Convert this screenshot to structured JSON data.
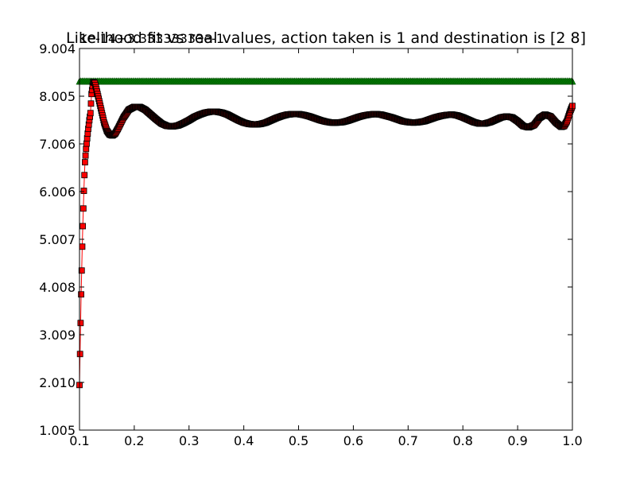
{
  "chart_data": {
    "type": "line",
    "title": "Likelihood fit vs real values, action taken is 1 and destination is [2 8]",
    "offset_label": "1e-14+3.33333333e-1",
    "xlabel": "",
    "ylabel": "",
    "xlim": [
      0.1,
      1.0
    ],
    "ylim": [
      1.005,
      9.004
    ],
    "x_ticks": [
      "0.1",
      "0.2",
      "0.3",
      "0.4",
      "0.5",
      "0.6",
      "0.7",
      "0.8",
      "0.9",
      "1.0"
    ],
    "y_ticks": [
      "1.005",
      "2.010",
      "3.009",
      "4.008",
      "5.007",
      "6.006",
      "7.006",
      "8.005",
      "9.004"
    ],
    "series": [
      {
        "color": "#ff0000",
        "marker": "square",
        "x": [
          0.1,
          0.101,
          0.102,
          0.103,
          0.104,
          0.105,
          0.106,
          0.107,
          0.108,
          0.109,
          0.11,
          0.112,
          0.114,
          0.116,
          0.118,
          0.12,
          0.122,
          0.125,
          0.128,
          0.131,
          0.135,
          0.14,
          0.145,
          0.15,
          0.155,
          0.16,
          0.165,
          0.17,
          0.18,
          0.19,
          0.2,
          0.21,
          0.22,
          0.23,
          0.24,
          0.25,
          0.26,
          0.27,
          0.28,
          0.29,
          0.3,
          0.31,
          0.32,
          0.33,
          0.34,
          0.35,
          0.36,
          0.37,
          0.38,
          0.39,
          0.4,
          0.41,
          0.42,
          0.43,
          0.44,
          0.45,
          0.46,
          0.47,
          0.48,
          0.49,
          0.5,
          0.51,
          0.52,
          0.53,
          0.54,
          0.55,
          0.56,
          0.57,
          0.58,
          0.59,
          0.6,
          0.61,
          0.62,
          0.63,
          0.64,
          0.65,
          0.66,
          0.67,
          0.68,
          0.69,
          0.7,
          0.71,
          0.72,
          0.73,
          0.74,
          0.75,
          0.76,
          0.77,
          0.78,
          0.79,
          0.8,
          0.81,
          0.82,
          0.83,
          0.84,
          0.85,
          0.86,
          0.87,
          0.88,
          0.89,
          0.9,
          0.91,
          0.92,
          0.93,
          0.94,
          0.95,
          0.96,
          0.97,
          0.98,
          0.985,
          0.99,
          0.994,
          0.997,
          1.0
        ],
        "y": [
          1.95,
          2.6,
          3.25,
          3.85,
          4.35,
          4.85,
          5.28,
          5.65,
          6.02,
          6.35,
          6.62,
          6.9,
          7.12,
          7.32,
          7.5,
          7.65,
          8.05,
          8.3,
          8.28,
          8.15,
          7.95,
          7.7,
          7.45,
          7.28,
          7.2,
          7.18,
          7.22,
          7.32,
          7.55,
          7.72,
          7.78,
          7.78,
          7.72,
          7.62,
          7.52,
          7.43,
          7.38,
          7.37,
          7.39,
          7.44,
          7.5,
          7.57,
          7.62,
          7.66,
          7.68,
          7.68,
          7.66,
          7.62,
          7.56,
          7.5,
          7.45,
          7.42,
          7.41,
          7.42,
          7.45,
          7.5,
          7.55,
          7.59,
          7.62,
          7.63,
          7.63,
          7.61,
          7.58,
          7.54,
          7.5,
          7.47,
          7.45,
          7.45,
          7.46,
          7.49,
          7.53,
          7.57,
          7.6,
          7.62,
          7.63,
          7.62,
          7.59,
          7.56,
          7.52,
          7.48,
          7.46,
          7.45,
          7.46,
          7.48,
          7.52,
          7.56,
          7.59,
          7.61,
          7.62,
          7.6,
          7.56,
          7.51,
          7.46,
          7.43,
          7.43,
          7.46,
          7.51,
          7.56,
          7.58,
          7.56,
          7.48,
          7.38,
          7.35,
          7.4,
          7.55,
          7.62,
          7.58,
          7.45,
          7.36,
          7.38,
          7.48,
          7.62,
          7.72,
          7.8
        ]
      },
      {
        "color": "#008000",
        "marker": "triangle",
        "x": [
          0.1,
          1.0
        ],
        "y": [
          8.32,
          8.32
        ]
      }
    ],
    "grid": false,
    "legend": null
  }
}
